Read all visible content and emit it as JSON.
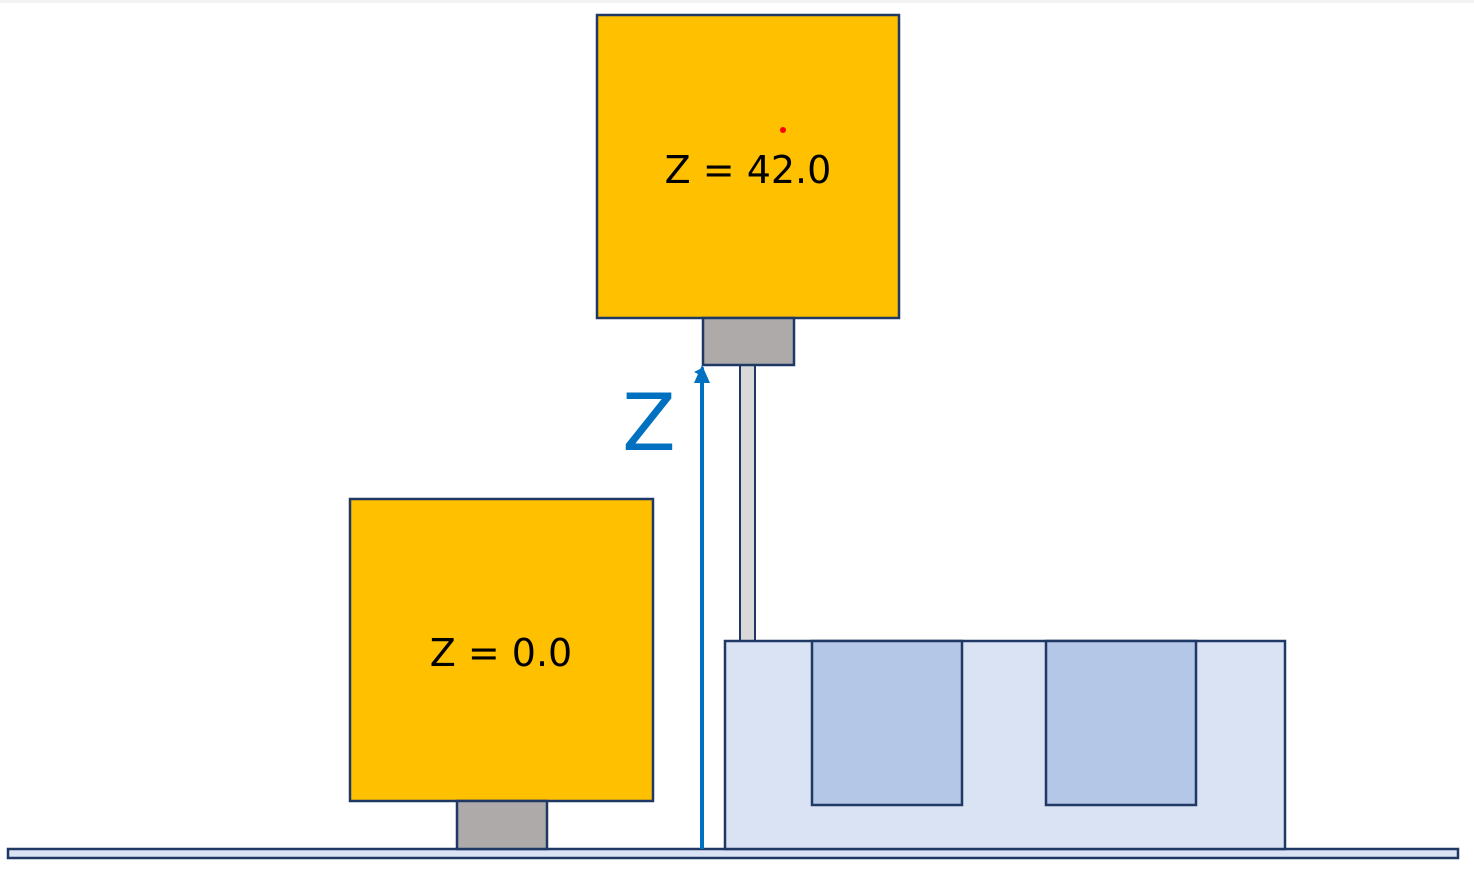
{
  "diagram": {
    "upper_block": {
      "label": "Z = 42.0"
    },
    "lower_block": {
      "label": "Z = 0.0"
    },
    "axis": {
      "label": "Z"
    }
  },
  "colors": {
    "block_fill": "#FFC000",
    "outline": "#1F3864",
    "nozzle_fill": "#AEAAAA",
    "rail_fill": "#D9D9D9",
    "bed_fill": "#DAE3F3",
    "bed_well_fill": "#B4C7E7",
    "axis_color": "#0070C0",
    "marker_dot": "#FF0000"
  }
}
